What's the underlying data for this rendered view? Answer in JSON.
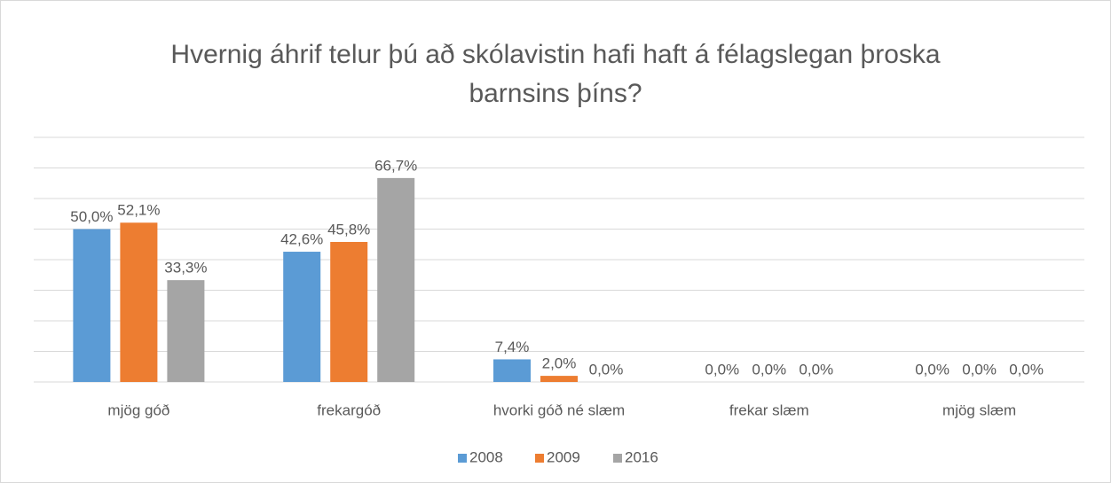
{
  "chart_data": {
    "type": "bar",
    "title": "Hvernig áhrif telur þú að skólavistin hafi haft á félagslegan þroska barnsins þíns?",
    "categories": [
      "mjög góð",
      "frekargóð",
      "hvorki góð né slæm",
      "frekar slæm",
      "mjög slæm"
    ],
    "series": [
      {
        "name": "2008",
        "color": "#5b9bd5",
        "values": [
          50.0,
          42.6,
          7.4,
          0,
          0
        ],
        "value_labels": [
          "50,0%",
          "42,6%",
          "7,4%",
          "0,0%",
          "0,0%"
        ]
      },
      {
        "name": "2009",
        "color": "#ed7d31",
        "values": [
          52.1,
          45.8,
          2.0,
          0,
          0
        ],
        "value_labels": [
          "52,1%",
          "45,8%",
          "2,0%",
          "0,0%",
          "0,0%"
        ]
      },
      {
        "name": "2016",
        "color": "#a5a5a5",
        "values": [
          33.3,
          66.7,
          0,
          0,
          0
        ],
        "value_labels": [
          "33,3%",
          "66,7%",
          "0,0%",
          "0,0%",
          "0,0%"
        ]
      }
    ],
    "ylim": [
      0,
      80
    ],
    "yticks": [
      0,
      10,
      20,
      30,
      40,
      50,
      60,
      70,
      80
    ],
    "grid": true,
    "legend": "bottom"
  }
}
